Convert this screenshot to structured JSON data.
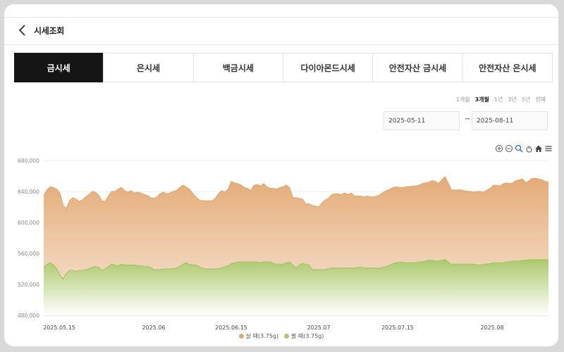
{
  "header": {
    "title": "시세조회"
  },
  "tabs": [
    {
      "label": "금시세",
      "active": true
    },
    {
      "label": "은시세",
      "active": false
    },
    {
      "label": "백금시세",
      "active": false
    },
    {
      "label": "다이아몬드시세",
      "active": false
    },
    {
      "label": "안전자산 금시세",
      "active": false
    },
    {
      "label": "안전자산 은시세",
      "active": false
    }
  ],
  "periods": [
    {
      "label": "1개월",
      "selected": false
    },
    {
      "label": "3개월",
      "selected": true
    },
    {
      "label": "1년",
      "selected": false
    },
    {
      "label": "3년",
      "selected": false
    },
    {
      "label": "5년",
      "selected": false
    },
    {
      "label": "전체",
      "selected": false
    }
  ],
  "date_range": {
    "start": "2025-05-11",
    "separator": "~",
    "end": "2025-08-11"
  },
  "toolbar_icons": [
    "zoom-in-icon",
    "zoom-out-icon",
    "magnify-icon",
    "pan-hand-icon",
    "home-icon",
    "menu-icon"
  ],
  "chart_data": {
    "type": "area",
    "y_ticks": [
      "680,000",
      "640,000",
      "600,000",
      "560,000",
      "520,000",
      "480,000"
    ],
    "ylim": [
      480000,
      680000
    ],
    "x_ticks": [
      "2025.05.15",
      "2025.06",
      "2025.06.15",
      "2025.07",
      "2025.07.15",
      "2025.08"
    ],
    "grid": true,
    "legend_position": "bottom-center",
    "series": [
      {
        "name": "살 때(3.75g)",
        "color": "#e0a66c",
        "values": [
          634000,
          642000,
          646000,
          645000,
          643000,
          638000,
          622000,
          618000,
          628000,
          632000,
          630000,
          627000,
          629000,
          633000,
          636000,
          640000,
          639000,
          635000,
          628000,
          627000,
          634000,
          640000,
          640000,
          643000,
          645000,
          641000,
          639000,
          641000,
          638000,
          639000,
          638000,
          636000,
          635000,
          632000,
          631000,
          633000,
          637000,
          639000,
          637000,
          638000,
          640000,
          641000,
          645000,
          648000,
          646000,
          643000,
          638000,
          633000,
          629000,
          628000,
          628000,
          628000,
          628000,
          631000,
          637000,
          641000,
          639000,
          643000,
          653000,
          651000,
          650000,
          648000,
          645000,
          644000,
          641000,
          648000,
          649000,
          647000,
          650000,
          646000,
          644000,
          644000,
          643000,
          645000,
          646000,
          648000,
          645000,
          632000,
          632000,
          631000,
          630000,
          624000,
          624000,
          622000,
          621000,
          620000,
          625000,
          629000,
          631000,
          636000,
          637000,
          637000,
          636000,
          638000,
          636000,
          638000,
          634000,
          634000,
          634000,
          633000,
          634000,
          633000,
          633000,
          634000,
          636000,
          639000,
          641000,
          643000,
          645000,
          646000,
          645000,
          645000,
          646000,
          646000,
          647000,
          647000,
          648000,
          650000,
          651000,
          652000,
          654000,
          653000,
          650000,
          655000,
          659000,
          651000,
          642000,
          642000,
          642000,
          642000,
          641000,
          640000,
          640000,
          639000,
          640000,
          640000,
          639000,
          642000,
          644000,
          648000,
          648000,
          647000,
          650000,
          651000,
          650000,
          651000,
          654000,
          655000,
          656000,
          651000,
          654000,
          657000,
          657000,
          656000,
          655000,
          653000,
          652000
        ]
      },
      {
        "name": "팔 때(3.75g)",
        "color": "#a8c96a",
        "values": [
          542000,
          546000,
          548000,
          545000,
          540000,
          532000,
          527000,
          534000,
          538000,
          538000,
          537000,
          538000,
          538000,
          539000,
          540000,
          542000,
          543000,
          542000,
          538000,
          540000,
          543000,
          546000,
          545000,
          544000,
          546000,
          545000,
          545000,
          545000,
          545000,
          544000,
          544000,
          543000,
          543000,
          542000,
          539000,
          539000,
          539000,
          540000,
          540000,
          540000,
          540000,
          541000,
          543000,
          546000,
          548000,
          546000,
          545000,
          545000,
          543000,
          541000,
          540000,
          540000,
          540000,
          540000,
          540000,
          541000,
          543000,
          544000,
          547000,
          548000,
          549000,
          549000,
          549000,
          549000,
          549000,
          549000,
          549000,
          548000,
          549000,
          549000,
          549000,
          547000,
          546000,
          546000,
          546000,
          548000,
          549000,
          545000,
          541000,
          545000,
          547000,
          546000,
          545000,
          539000,
          539000,
          539000,
          539000,
          539000,
          540000,
          541000,
          541000,
          541000,
          541000,
          541000,
          541000,
          541000,
          541000,
          542000,
          542000,
          541000,
          541000,
          541000,
          541000,
          541000,
          541000,
          542000,
          543000,
          545000,
          547000,
          548000,
          549000,
          548000,
          548000,
          548000,
          548000,
          548000,
          549000,
          549000,
          550000,
          551000,
          551000,
          550000,
          550000,
          551000,
          552000,
          549000,
          546000,
          546000,
          546000,
          546000,
          546000,
          546000,
          546000,
          546000,
          545000,
          545000,
          546000,
          546000,
          547000,
          548000,
          548000,
          548000,
          548000,
          549000,
          549000,
          550000,
          550000,
          550000,
          551000,
          551000,
          552000,
          552000,
          552000,
          552000,
          552000,
          552000,
          552000
        ]
      }
    ]
  }
}
